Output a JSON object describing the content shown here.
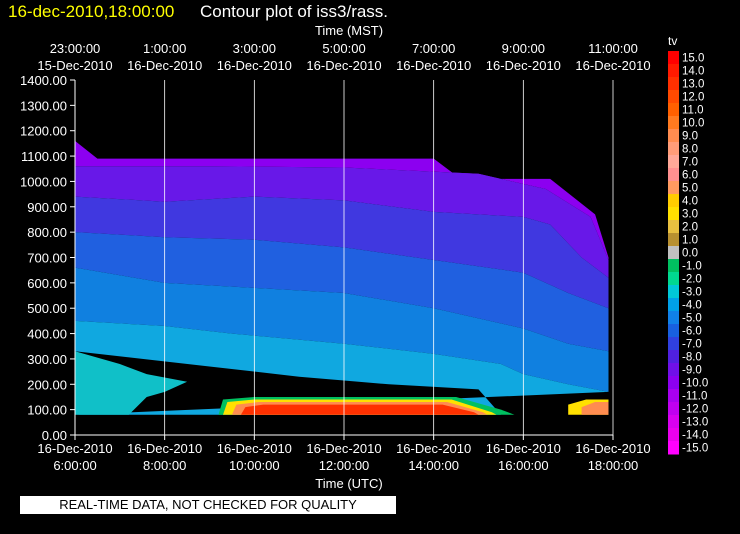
{
  "header": {
    "timestamp": "16-dec-2010,18:00:00",
    "title": "Contour plot of iss3/rass."
  },
  "banner": "REAL-TIME DATA, NOT CHECKED FOR QUALITY",
  "colors": {
    "background": "#000000",
    "grid": "#ffffff",
    "header_timestamp": "#ffff00"
  },
  "chart_data": {
    "type": "heatmap",
    "title": "Contour plot of iss3/rass.",
    "top_axis_label": "Time (MST)",
    "xlabel": "Time (UTC)",
    "ylabel": "",
    "ylim": [
      0,
      1400
    ],
    "y_ticks": [
      "0.00",
      "100.00",
      "200.00",
      "300.00",
      "400.00",
      "500.00",
      "600.00",
      "700.00",
      "800.00",
      "900.00",
      "1000.00",
      "1100.00",
      "1200.00",
      "1300.00",
      "1400.00"
    ],
    "x_range_hours": [
      6,
      18
    ],
    "x_ticks_utc": [
      {
        "hour": 6,
        "date": "16-Dec-2010",
        "time": "6:00:00"
      },
      {
        "hour": 8,
        "date": "16-Dec-2010",
        "time": "8:00:00"
      },
      {
        "hour": 10,
        "date": "16-Dec-2010",
        "time": "10:00:00"
      },
      {
        "hour": 12,
        "date": "16-Dec-2010",
        "time": "12:00:00"
      },
      {
        "hour": 14,
        "date": "16-Dec-2010",
        "time": "14:00:00"
      },
      {
        "hour": 16,
        "date": "16-Dec-2010",
        "time": "16:00:00"
      },
      {
        "hour": 18,
        "date": "16-Dec-2010",
        "time": "18:00:00"
      }
    ],
    "x_ticks_mst": [
      {
        "hour": 6,
        "time": "23:00:00",
        "date": "15-Dec-2010"
      },
      {
        "hour": 8,
        "time": "1:00:00",
        "date": "16-Dec-2010"
      },
      {
        "hour": 10,
        "time": "3:00:00",
        "date": "16-Dec-2010"
      },
      {
        "hour": 12,
        "time": "5:00:00",
        "date": "16-Dec-2010"
      },
      {
        "hour": 14,
        "time": "7:00:00",
        "date": "16-Dec-2010"
      },
      {
        "hour": 16,
        "time": "9:00:00",
        "date": "16-Dec-2010"
      },
      {
        "hour": 18,
        "time": "11:00:00",
        "date": "16-Dec-2010"
      }
    ],
    "grid": true,
    "colorbar": {
      "label": "tv",
      "placement": "right",
      "levels": [
        {
          "label": "15.0",
          "color": "#ff0000"
        },
        {
          "label": "14.0",
          "color": "#ff1a00"
        },
        {
          "label": "13.0",
          "color": "#ff3000"
        },
        {
          "label": "12.0",
          "color": "#ff4a00"
        },
        {
          "label": "11.0",
          "color": "#ff6000"
        },
        {
          "label": "10.0",
          "color": "#ff7a20"
        },
        {
          "label": "9.0",
          "color": "#ff8c50"
        },
        {
          "label": "8.0",
          "color": "#ff9c78"
        },
        {
          "label": "7.0",
          "color": "#ffa898"
        },
        {
          "label": "6.0",
          "color": "#ff9090"
        },
        {
          "label": "5.0",
          "color": "#ff9a60"
        },
        {
          "label": "4.0",
          "color": "#ffcc00"
        },
        {
          "label": "3.0",
          "color": "#ffe000"
        },
        {
          "label": "2.0",
          "color": "#e8c040"
        },
        {
          "label": "1.0",
          "color": "#b89030"
        },
        {
          "label": "0.0",
          "color": "#c0c0c0"
        },
        {
          "label": "-1.0",
          "color": "#00c060"
        },
        {
          "label": "-2.0",
          "color": "#00d890"
        },
        {
          "label": "-3.0",
          "color": "#00c8d8"
        },
        {
          "label": "-4.0",
          "color": "#00a0e8"
        },
        {
          "label": "-5.0",
          "color": "#1080e8"
        },
        {
          "label": "-6.0",
          "color": "#1860e0"
        },
        {
          "label": "-7.0",
          "color": "#3040e0"
        },
        {
          "label": "-8.0",
          "color": "#5020e0"
        },
        {
          "label": "-9.0",
          "color": "#7010e8"
        },
        {
          "label": "-10.0",
          "color": "#8c00f0"
        },
        {
          "label": "-11.0",
          "color": "#a800f0"
        },
        {
          "label": "-12.0",
          "color": "#c000f0"
        },
        {
          "label": "-13.0",
          "color": "#d800f0"
        },
        {
          "label": "-14.0",
          "color": "#ea00ee"
        },
        {
          "label": "-15.0",
          "color": "#ff00ff"
        }
      ]
    },
    "contour_bands": [
      {
        "level": "-10.0",
        "color": "#8c00f0",
        "top": [
          [
            6.0,
            1160
          ],
          [
            6.5,
            1090
          ],
          [
            14.0,
            1090
          ],
          [
            14.6,
            1010
          ],
          [
            16.6,
            1010
          ],
          [
            17.6,
            870
          ],
          [
            17.9,
            700
          ]
        ],
        "bottom": [
          [
            6.0,
            1060
          ],
          [
            9.0,
            1060
          ],
          [
            12.0,
            1055
          ],
          [
            15.0,
            1030
          ],
          [
            16.5,
            970
          ],
          [
            17.5,
            860
          ],
          [
            17.9,
            690
          ]
        ]
      },
      {
        "level": "-8.0",
        "color": "#6818e8",
        "top": [
          [
            6.0,
            1060
          ],
          [
            9.0,
            1060
          ],
          [
            12.0,
            1055
          ],
          [
            15.0,
            1030
          ],
          [
            16.5,
            970
          ],
          [
            17.5,
            860
          ],
          [
            17.9,
            690
          ]
        ],
        "bottom": [
          [
            6.0,
            940
          ],
          [
            8.0,
            920
          ],
          [
            10.0,
            940
          ],
          [
            12.0,
            925
          ],
          [
            14.0,
            880
          ],
          [
            16.0,
            860
          ],
          [
            16.6,
            830
          ],
          [
            17.3,
            700
          ],
          [
            17.9,
            620
          ]
        ]
      },
      {
        "level": "-7.0",
        "color": "#4038e0",
        "top": [
          [
            6.0,
            940
          ],
          [
            8.0,
            920
          ],
          [
            10.0,
            940
          ],
          [
            12.0,
            925
          ],
          [
            14.0,
            880
          ],
          [
            16.0,
            860
          ],
          [
            16.6,
            830
          ],
          [
            17.3,
            700
          ],
          [
            17.9,
            620
          ]
        ],
        "bottom": [
          [
            6.0,
            800
          ],
          [
            8.0,
            780
          ],
          [
            10.0,
            770
          ],
          [
            12.0,
            740
          ],
          [
            14.0,
            690
          ],
          [
            16.0,
            640
          ],
          [
            17.0,
            560
          ],
          [
            17.9,
            500
          ]
        ]
      },
      {
        "level": "-6.0",
        "color": "#2060e0",
        "top": [
          [
            6.0,
            800
          ],
          [
            8.0,
            780
          ],
          [
            10.0,
            770
          ],
          [
            12.0,
            740
          ],
          [
            14.0,
            690
          ],
          [
            16.0,
            640
          ],
          [
            17.0,
            560
          ],
          [
            17.9,
            500
          ]
        ],
        "bottom": [
          [
            6.0,
            660
          ],
          [
            8.0,
            600
          ],
          [
            10.0,
            580
          ],
          [
            12.0,
            560
          ],
          [
            14.0,
            500
          ],
          [
            16.0,
            420
          ],
          [
            17.0,
            360
          ],
          [
            17.9,
            330
          ]
        ]
      },
      {
        "level": "-5.0",
        "color": "#1080e0",
        "top": [
          [
            6.0,
            660
          ],
          [
            8.0,
            600
          ],
          [
            10.0,
            580
          ],
          [
            12.0,
            560
          ],
          [
            14.0,
            500
          ],
          [
            16.0,
            420
          ],
          [
            17.0,
            360
          ],
          [
            17.9,
            330
          ]
        ],
        "bottom": [
          [
            6.0,
            450
          ],
          [
            8.0,
            430
          ],
          [
            9.5,
            400
          ],
          [
            12.0,
            360
          ],
          [
            14.0,
            320
          ],
          [
            15.5,
            280
          ],
          [
            16.0,
            240
          ],
          [
            17.0,
            200
          ],
          [
            17.9,
            170
          ]
        ]
      },
      {
        "level": "-4.0",
        "color": "#10a8e0",
        "top": [
          [
            6.0,
            450
          ],
          [
            8.0,
            430
          ],
          [
            9.5,
            400
          ],
          [
            12.0,
            360
          ],
          [
            14.0,
            320
          ],
          [
            15.5,
            280
          ],
          [
            16.0,
            240
          ],
          [
            17.0,
            200
          ],
          [
            17.9,
            170
          ]
        ],
        "bottom": [
          [
            6.0,
            330
          ],
          [
            7.5,
            300
          ],
          [
            9.0,
            270
          ],
          [
            11.0,
            230
          ],
          [
            13.0,
            200
          ],
          [
            15.0,
            180
          ],
          [
            15.5,
            80
          ],
          [
            6.0,
            80
          ]
        ]
      },
      {
        "level": "-3.0",
        "color": "#10c0c8",
        "top": [
          [
            6.0,
            330
          ],
          [
            7.0,
            280
          ],
          [
            7.6,
            240
          ],
          [
            8.5,
            210
          ],
          [
            8.0,
            170
          ],
          [
            7.6,
            150
          ],
          [
            7.2,
            80
          ],
          [
            6.0,
            80
          ]
        ],
        "bottom": []
      },
      {
        "level": "-1.0",
        "color": "#00c060",
        "top": [
          [
            9.3,
            140
          ],
          [
            10.0,
            150
          ],
          [
            14.5,
            150
          ],
          [
            15.5,
            100
          ],
          [
            15.8,
            80
          ],
          [
            9.2,
            80
          ]
        ],
        "bottom": []
      },
      {
        "level": "1.0",
        "color": "#ffe000",
        "top": [
          [
            9.4,
            130
          ],
          [
            10.0,
            140
          ],
          [
            14.4,
            140
          ],
          [
            15.3,
            90
          ],
          [
            15.4,
            80
          ],
          [
            9.3,
            80
          ]
        ],
        "bottom": []
      },
      {
        "level": "6.0",
        "color": "#ff8c50",
        "top": [
          [
            9.6,
            120
          ],
          [
            10.1,
            130
          ],
          [
            14.3,
            130
          ],
          [
            15.1,
            90
          ],
          [
            15.2,
            80
          ],
          [
            9.5,
            80
          ]
        ],
        "bottom": []
      },
      {
        "level": "12.0",
        "color": "#ff3000",
        "top": [
          [
            9.8,
            110
          ],
          [
            10.2,
            120
          ],
          [
            14.2,
            120
          ],
          [
            14.9,
            90
          ],
          [
            15.0,
            80
          ],
          [
            9.7,
            80
          ]
        ],
        "bottom": []
      },
      {
        "level": "2.0",
        "color": "#ffe000",
        "top": [
          [
            17.0,
            120
          ],
          [
            17.4,
            140
          ],
          [
            17.9,
            140
          ],
          [
            17.9,
            80
          ],
          [
            17.0,
            80
          ]
        ],
        "bottom": []
      },
      {
        "level": "8.0",
        "color": "#ff8c50",
        "top": [
          [
            17.3,
            110
          ],
          [
            17.6,
            130
          ],
          [
            17.9,
            130
          ],
          [
            17.9,
            80
          ],
          [
            17.3,
            80
          ]
        ],
        "bottom": []
      }
    ]
  }
}
